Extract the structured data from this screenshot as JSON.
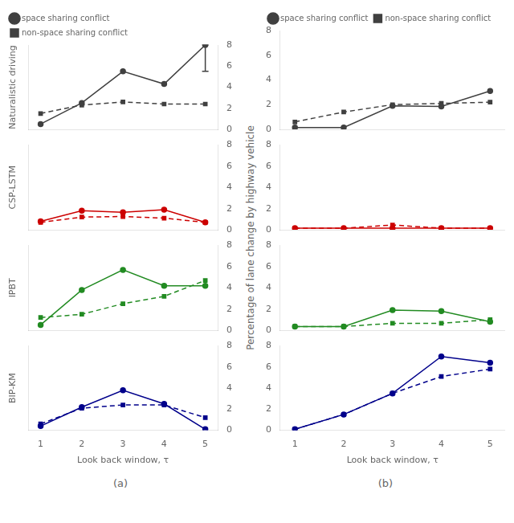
{
  "chart_data": [
    {
      "type": "line",
      "ylabel": "Naturalistic driving",
      "x": [
        1,
        2,
        3,
        4,
        5
      ],
      "xlim": [
        0.7,
        5.3
      ],
      "xticks": [
        1,
        2,
        3,
        4,
        5
      ],
      "ylim": [
        0,
        8
      ],
      "yticks": [
        0,
        2,
        4,
        6,
        8
      ],
      "grid": false,
      "legend": "upper left",
      "tick_labels": "y",
      "series": [
        {
          "name": "space sharing conflict",
          "color": "#404040",
          "line_style": "solid",
          "marker": "circle",
          "values": [
            0.5,
            2.5,
            5.5,
            4.3,
            8.0
          ],
          "error_low": [
            null,
            null,
            null,
            null,
            5.5
          ],
          "error_high": [
            null,
            null,
            null,
            null,
            8.0
          ]
        },
        {
          "name": "non-space sharing conflict",
          "color": "#404040",
          "line_style": "dashed",
          "marker": "square",
          "values": [
            1.5,
            2.3,
            2.6,
            2.4,
            2.4
          ]
        }
      ]
    },
    {
      "type": "line",
      "ylabel": "CSP-LSTM",
      "x": [
        1,
        2,
        3,
        4,
        5
      ],
      "xlim": [
        0.7,
        5.3
      ],
      "xticks": [
        1,
        2,
        3,
        4,
        5
      ],
      "ylim": [
        0,
        8
      ],
      "yticks": [
        0,
        2,
        4,
        6,
        8
      ],
      "grid": false,
      "tick_labels": "y",
      "series": [
        {
          "name": "space sharing conflict",
          "color": "#cc0000",
          "line_style": "solid",
          "marker": "circle",
          "values": [
            0.8,
            1.8,
            1.65,
            1.9,
            0.7
          ]
        },
        {
          "name": "non-space sharing conflict",
          "color": "#cc0000",
          "line_style": "dashed",
          "marker": "square",
          "values": [
            0.7,
            1.2,
            1.25,
            1.1,
            0.7
          ]
        }
      ]
    },
    {
      "type": "line",
      "ylabel": "IPBT",
      "x": [
        1,
        2,
        3,
        4,
        5
      ],
      "xlim": [
        0.7,
        5.3
      ],
      "xticks": [
        1,
        2,
        3,
        4,
        5
      ],
      "ylim": [
        0,
        8
      ],
      "yticks": [
        0,
        2,
        4,
        6,
        8
      ],
      "grid": false,
      "tick_labels": "y",
      "series": [
        {
          "name": "space sharing conflict",
          "color": "#228B22",
          "line_style": "solid",
          "marker": "circle",
          "values": [
            0.5,
            3.8,
            5.7,
            4.2,
            4.2
          ]
        },
        {
          "name": "non-space sharing conflict",
          "color": "#228B22",
          "line_style": "dashed",
          "marker": "square",
          "values": [
            1.2,
            1.5,
            2.5,
            3.2,
            4.7
          ]
        }
      ]
    },
    {
      "type": "line",
      "ylabel": "BIP-KM",
      "xlabel": "Look back window, τ",
      "annotations": [
        "(a)"
      ],
      "x": [
        1,
        2,
        3,
        4,
        5
      ],
      "xlim": [
        0.7,
        5.3
      ],
      "xticks": [
        1,
        2,
        3,
        4,
        5
      ],
      "ylim": [
        0,
        8
      ],
      "yticks": [
        0,
        2,
        4,
        6,
        8
      ],
      "grid": false,
      "tick_labels": true,
      "series": [
        {
          "name": "space sharing conflict",
          "color": "#00008B",
          "line_style": "solid",
          "marker": "circle",
          "values": [
            0.4,
            2.2,
            3.8,
            2.5,
            0.1
          ]
        },
        {
          "name": "non-space sharing conflict",
          "color": "#00008B",
          "line_style": "dashed",
          "marker": "square",
          "values": [
            0.6,
            2.1,
            2.4,
            2.4,
            1.2
          ]
        }
      ]
    },
    {
      "type": "line",
      "annotations": [
        "Percentage of lane change by highway vehicle"
      ],
      "x": [
        1,
        2,
        3,
        4,
        5
      ],
      "xlim": [
        0.7,
        5.3
      ],
      "xticks": [
        1,
        2,
        3,
        4,
        5
      ],
      "ylim": [
        0,
        8
      ],
      "yticks": [
        0,
        2,
        4,
        6,
        8
      ],
      "grid": false,
      "legend": "upper left",
      "tick_labels": "y",
      "series": [
        {
          "name": "space sharing conflict",
          "color": "#404040",
          "line_style": "solid",
          "marker": "circle",
          "values": [
            0.15,
            0.15,
            1.9,
            1.85,
            3.1
          ]
        },
        {
          "name": "non-space sharing conflict",
          "color": "#404040",
          "line_style": "dashed",
          "marker": "square",
          "values": [
            0.6,
            1.4,
            2.0,
            2.1,
            2.2
          ]
        }
      ]
    },
    {
      "type": "line",
      "x": [
        1,
        2,
        3,
        4,
        5
      ],
      "xlim": [
        0.7,
        5.3
      ],
      "xticks": [
        1,
        2,
        3,
        4,
        5
      ],
      "ylim": [
        0,
        8
      ],
      "yticks": [
        0,
        2,
        4,
        6,
        8
      ],
      "grid": false,
      "tick_labels": "y",
      "series": [
        {
          "name": "space sharing conflict",
          "color": "#cc0000",
          "line_style": "solid",
          "marker": "circle",
          "values": [
            0.15,
            0.15,
            0.15,
            0.15,
            0.15
          ]
        },
        {
          "name": "non-space sharing conflict",
          "color": "#cc0000",
          "line_style": "dashed",
          "marker": "square",
          "values": [
            0.15,
            0.15,
            0.45,
            0.15,
            0.15
          ]
        }
      ]
    },
    {
      "type": "line",
      "x": [
        1,
        2,
        3,
        4,
        5
      ],
      "xlim": [
        0.7,
        5.3
      ],
      "xticks": [
        1,
        2,
        3,
        4,
        5
      ],
      "ylim": [
        0,
        8
      ],
      "yticks": [
        0,
        2,
        4,
        6,
        8
      ],
      "grid": false,
      "tick_labels": "y",
      "series": [
        {
          "name": "space sharing conflict",
          "color": "#228B22",
          "line_style": "solid",
          "marker": "circle",
          "values": [
            0.35,
            0.35,
            1.9,
            1.8,
            0.8
          ]
        },
        {
          "name": "non-space sharing conflict",
          "color": "#228B22",
          "line_style": "dashed",
          "marker": "square",
          "values": [
            0.35,
            0.35,
            0.65,
            0.65,
            1.0
          ]
        }
      ]
    },
    {
      "type": "line",
      "xlabel": "Look back window, τ",
      "annotations": [
        "(b)"
      ],
      "x": [
        1,
        2,
        3,
        4,
        5
      ],
      "xlim": [
        0.7,
        5.3
      ],
      "xticks": [
        1,
        2,
        3,
        4,
        5
      ],
      "ylim": [
        0,
        8
      ],
      "yticks": [
        0,
        2,
        4,
        6,
        8
      ],
      "grid": false,
      "tick_labels": true,
      "series": [
        {
          "name": "space sharing conflict",
          "color": "#00008B",
          "line_style": "solid",
          "marker": "circle",
          "values": [
            0.1,
            1.5,
            3.5,
            7.0,
            6.4
          ]
        },
        {
          "name": "non-space sharing conflict",
          "color": "#00008B",
          "line_style": "dashed",
          "marker": "square",
          "values": [
            0.1,
            1.5,
            3.5,
            5.1,
            5.8
          ]
        }
      ]
    }
  ]
}
